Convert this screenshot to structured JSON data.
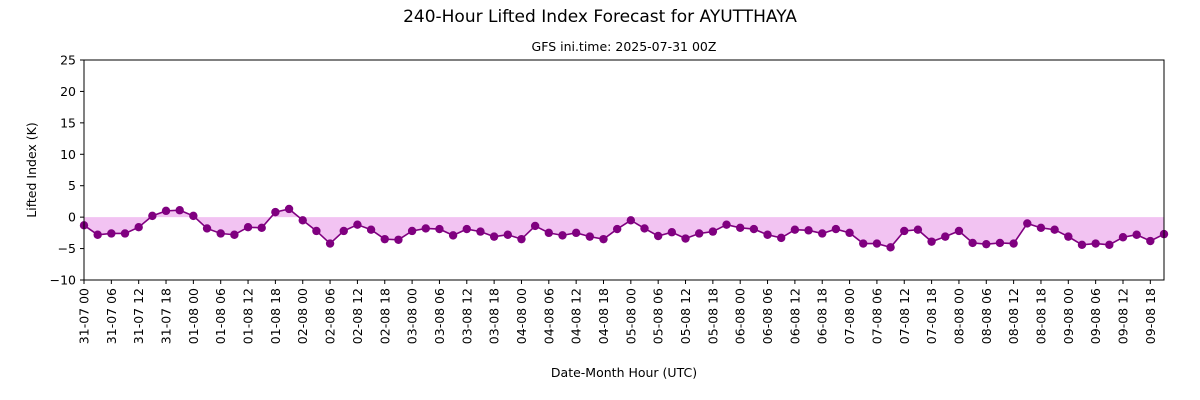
{
  "chart_data": {
    "type": "line",
    "title": "240-Hour Lifted Index Forecast for AYUTTHAYA",
    "subtitle": "GFS ini.time: 2025-07-31 00Z",
    "xlabel": "Date-Month Hour (UTC)",
    "ylabel": "Lifted Index (K)",
    "ylim": [
      -10,
      25
    ],
    "yticks": [
      -10,
      -5,
      0,
      5,
      10,
      15,
      20,
      25
    ],
    "xticks": [
      "31-07 00",
      "31-07 06",
      "31-07 12",
      "31-07 18",
      "01-08 00",
      "01-08 06",
      "01-08 12",
      "01-08 18",
      "02-08 00",
      "02-08 06",
      "02-08 12",
      "02-08 18",
      "03-08 00",
      "03-08 06",
      "03-08 12",
      "03-08 18",
      "04-08 00",
      "04-08 06",
      "04-08 12",
      "04-08 18",
      "05-08 00",
      "05-08 06",
      "05-08 12",
      "05-08 18",
      "06-08 00",
      "06-08 06",
      "06-08 12",
      "06-08 18",
      "07-08 00",
      "07-08 06",
      "07-08 12",
      "07-08 18",
      "08-08 00",
      "08-08 06",
      "08-08 12",
      "08-08 18",
      "09-08 00",
      "09-08 06",
      "09-08 12",
      "09-08 18"
    ],
    "x_step_hours": 3,
    "grid": false,
    "line_color": "#800080",
    "fill_color": "#f0b8f0",
    "series": [
      {
        "values": [
          -1.3,
          -2.8,
          -2.6,
          -2.6,
          -1.6,
          0.2,
          1.0,
          1.1,
          0.2,
          -1.8,
          -2.6,
          -2.8,
          -1.6,
          -1.7,
          0.8,
          1.3,
          -0.5,
          -2.2,
          -4.2,
          -2.2,
          -1.2,
          -2.0,
          -3.5,
          -3.6,
          -2.2,
          -1.8,
          -1.9,
          -2.9,
          -1.9,
          -2.3,
          -3.1,
          -2.8,
          -3.5,
          -1.4,
          -2.5,
          -2.9,
          -2.5,
          -3.1,
          -3.5,
          -1.9,
          -0.5,
          -1.8,
          -3.0,
          -2.4,
          -3.4,
          -2.6,
          -2.3,
          -1.2,
          -1.7,
          -1.9,
          -2.8,
          -3.3,
          -2.0,
          -2.1,
          -2.6,
          -1.9,
          -2.5,
          -4.2,
          -4.2,
          -4.8,
          -2.2,
          -2.0,
          -3.9,
          -3.1,
          -2.2,
          -4.1,
          -4.3,
          -4.1,
          -4.2,
          -1.0,
          -1.7,
          -2.0,
          -3.1,
          -4.4,
          -4.2,
          -4.4,
          -3.2,
          -2.8,
          -3.8,
          -2.7
        ]
      }
    ]
  }
}
